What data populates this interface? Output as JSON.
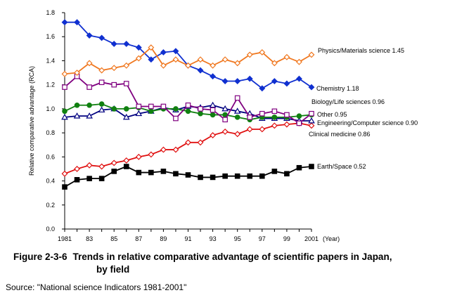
{
  "chart_data": {
    "type": "line",
    "ylabel": "Relative comparative advantage (RCA)",
    "xlabel_unit": "(Year)",
    "ylim": [
      0.0,
      1.8
    ],
    "yticks": [
      "0.0",
      "0.2",
      "0.4",
      "0.6",
      "0.8",
      "1.0",
      "1.2",
      "1.4",
      "1.6",
      "1.8"
    ],
    "xticks": [
      "1981",
      "83",
      "85",
      "87",
      "89",
      "91",
      "93",
      "95",
      "97",
      "99",
      "2001"
    ],
    "x": [
      1981,
      1982,
      1983,
      1984,
      1985,
      1986,
      1987,
      1988,
      1989,
      1990,
      1991,
      1992,
      1993,
      1994,
      1995,
      1996,
      1997,
      1998,
      1999,
      2000,
      2001
    ],
    "grid": false,
    "series": [
      {
        "name": "Physics/Materials science 1.45",
        "color": "#F07820",
        "marker": "diamond-open",
        "values": [
          1.29,
          1.3,
          1.38,
          1.32,
          1.34,
          1.36,
          1.42,
          1.51,
          1.36,
          1.41,
          1.36,
          1.41,
          1.36,
          1.41,
          1.38,
          1.45,
          1.47,
          1.38,
          1.43,
          1.39,
          1.45
        ]
      },
      {
        "name": "Chemistry 1.18",
        "color": "#1030D0",
        "marker": "diamond-filled",
        "values": [
          1.72,
          1.72,
          1.61,
          1.59,
          1.54,
          1.54,
          1.51,
          1.41,
          1.47,
          1.48,
          1.36,
          1.32,
          1.27,
          1.23,
          1.23,
          1.25,
          1.17,
          1.23,
          1.21,
          1.25,
          1.18
        ]
      },
      {
        "name": "Biology/Life sciences 0.96",
        "color": "#800080",
        "marker": "square-open",
        "values": [
          1.18,
          1.27,
          1.18,
          1.22,
          1.2,
          1.21,
          1.02,
          1.02,
          1.02,
          0.92,
          1.03,
          1.0,
          0.99,
          0.91,
          1.09,
          0.93,
          0.96,
          0.98,
          0.95,
          0.88,
          0.96
        ]
      },
      {
        "name": "Other 0.95",
        "color": "#108010",
        "marker": "circle-filled",
        "values": [
          0.98,
          1.03,
          1.03,
          1.04,
          1.0,
          1.0,
          1.01,
          0.98,
          1.0,
          1.0,
          0.98,
          0.96,
          0.95,
          0.95,
          0.93,
          0.91,
          0.93,
          0.93,
          0.93,
          0.94,
          0.95
        ]
      },
      {
        "name": "Engineering/Computer science 0.90",
        "color": "#000080",
        "marker": "triangle-open",
        "values": [
          0.93,
          0.94,
          0.94,
          0.99,
          1.0,
          0.93,
          0.96,
          0.98,
          1.01,
          0.99,
          1.02,
          1.01,
          1.03,
          1.0,
          0.98,
          0.96,
          0.92,
          0.92,
          0.92,
          0.9,
          0.9
        ]
      },
      {
        "name": "Clinical medicine 0.86",
        "color": "#E01010",
        "marker": "diamond-open",
        "values": [
          0.46,
          0.5,
          0.53,
          0.52,
          0.55,
          0.57,
          0.6,
          0.62,
          0.66,
          0.66,
          0.72,
          0.72,
          0.78,
          0.81,
          0.79,
          0.83,
          0.83,
          0.86,
          0.87,
          0.88,
          0.86
        ]
      },
      {
        "name": "Earth/Space 0.52",
        "color": "#000000",
        "marker": "square-filled",
        "values": [
          0.35,
          0.41,
          0.42,
          0.42,
          0.48,
          0.52,
          0.47,
          0.47,
          0.48,
          0.46,
          0.45,
          0.43,
          0.43,
          0.44,
          0.44,
          0.44,
          0.44,
          0.48,
          0.46,
          0.51,
          0.52
        ]
      }
    ]
  },
  "caption": {
    "number": "Figure 2-3-6",
    "title_line1": "Trends in relative comparative advantage of scientific papers in Japan,",
    "title_line2": "by field"
  },
  "source": "Source: \"National science Indicators 1981-2001\""
}
